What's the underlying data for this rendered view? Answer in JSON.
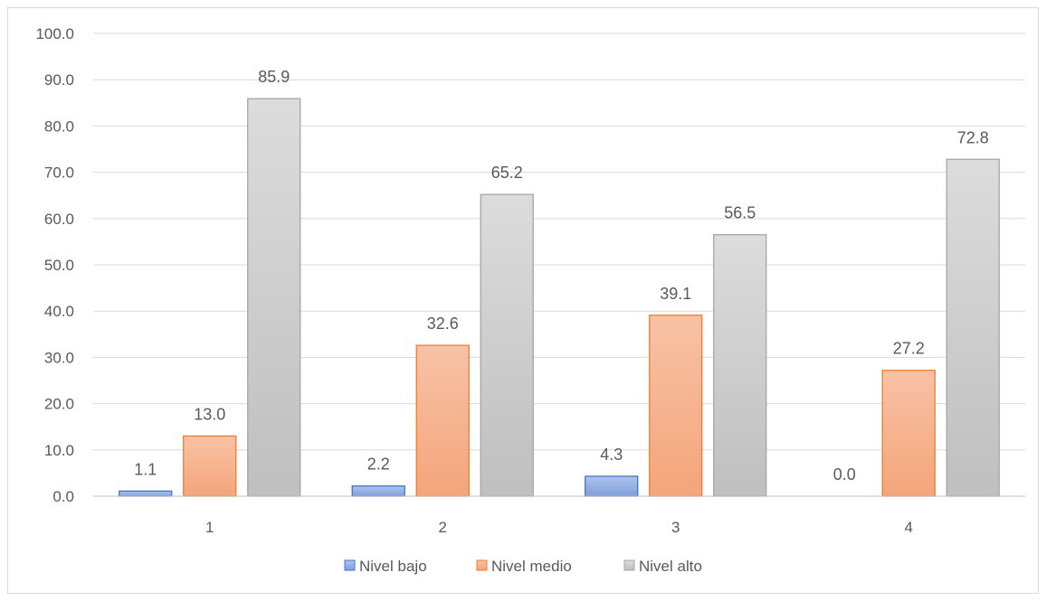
{
  "chart_data": {
    "type": "bar",
    "title": "",
    "xlabel": "",
    "ylabel": "",
    "categories": [
      "1",
      "2",
      "3",
      "4"
    ],
    "ylim": [
      0,
      100
    ],
    "ytick_step": 10,
    "y_tick_labels": [
      "0.0",
      "10.0",
      "20.0",
      "30.0",
      "40.0",
      "50.0",
      "60.0",
      "70.0",
      "80.0",
      "90.0",
      "100.0"
    ],
    "grid": true,
    "legend_position": "bottom",
    "series": [
      {
        "name": "Nivel bajo",
        "values": [
          1.1,
          2.2,
          4.3,
          0.0
        ],
        "labels": [
          "1.1",
          "2.2",
          "4.3",
          "0.0"
        ],
        "color": "#7f9fdc",
        "color_light": "#aec3ec",
        "stroke": "#4472c4"
      },
      {
        "name": "Nivel medio",
        "values": [
          13.0,
          32.6,
          39.1,
          27.2
        ],
        "labels": [
          "13.0",
          "32.6",
          "39.1",
          "27.2"
        ],
        "color": "#f4a57a",
        "color_light": "#f8c2a6",
        "stroke": "#ed7d31"
      },
      {
        "name": "Nivel alto",
        "values": [
          85.9,
          65.2,
          56.5,
          72.8
        ],
        "labels": [
          "85.9",
          "65.2",
          "56.5",
          "72.8"
        ],
        "color": "#bfbfbf",
        "color_light": "#dcdcdc",
        "stroke": "#a5a5a5"
      }
    ]
  }
}
